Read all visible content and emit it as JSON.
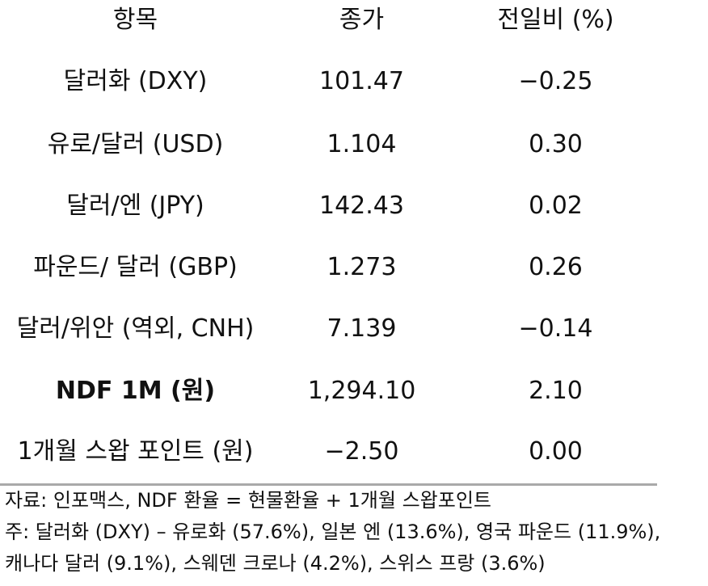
{
  "table": {
    "headers": [
      "항목",
      "종가",
      "전일비 (%)"
    ],
    "rows": [
      {
        "item": "달러화 (DXY)",
        "close": "101.47",
        "change": "−0.25",
        "bold": false
      },
      {
        "item": "유로/달러 (USD)",
        "close": "1.104",
        "change": "0.30",
        "bold": false
      },
      {
        "item": "달러/엔 (JPY)",
        "close": "142.43",
        "change": "0.02",
        "bold": false
      },
      {
        "item": "파운드/ 달러 (GBP)",
        "close": "1.273",
        "change": "0.26",
        "bold": false
      },
      {
        "item": "달러/위안 (역외, CNH)",
        "close": "7.139",
        "change": "−0.14",
        "bold": false
      },
      {
        "item": "NDF 1M (원)",
        "close": "1,294.10",
        "change": "2.10",
        "bold": true
      },
      {
        "item": "1개월 스왑 포인트 (원)",
        "close": "−2.50",
        "change": "0.00",
        "bold": false
      }
    ]
  },
  "notes": [
    "자료: 인포맥스, NDF 환율 = 현물환율 + 1개월 스왑포인트",
    "주: 달러화 (DXY) – 유로화 (57.6%), 일본 엔 (13.6%), 영국 파운드 (11.9%),",
    "캐나다 달러 (9.1%), 스웨덴 크로나 (4.2%), 스위스 프랑 (3.6%)"
  ]
}
